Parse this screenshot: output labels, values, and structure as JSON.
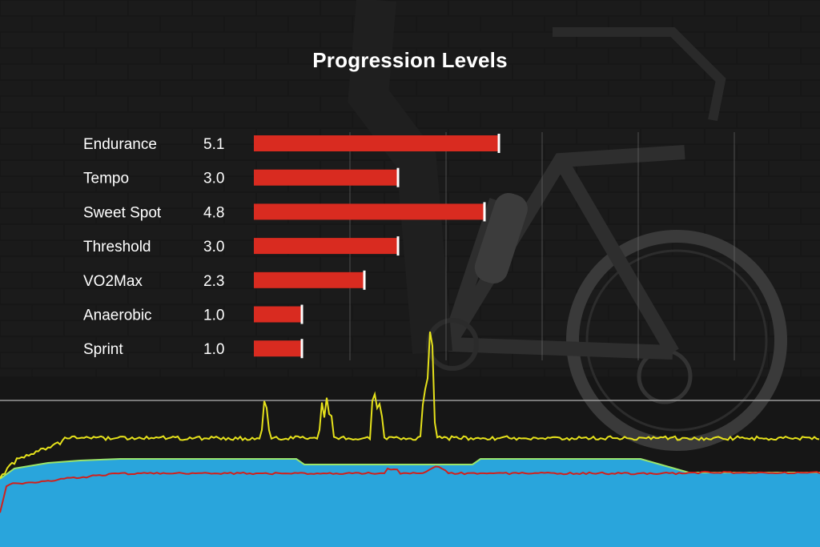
{
  "chart_data": {
    "type": "bar",
    "orientation": "horizontal",
    "title": "Progression Levels",
    "categories": [
      "Endurance",
      "Tempo",
      "Sweet Spot",
      "Threshold",
      "VO2Max",
      "Anaerobic",
      "Sprint"
    ],
    "values": [
      5.1,
      3.0,
      4.8,
      3.0,
      2.3,
      1.0,
      1.0
    ],
    "value_labels": [
      "5.1",
      "3.0",
      "4.8",
      "3.0",
      "2.3",
      "1.0",
      "1.0"
    ],
    "xlim": [
      0,
      10
    ],
    "grid": true,
    "legend": "none",
    "colors": {
      "bar": "#d92b20",
      "bar_cap": "#ffffff",
      "power": "#e6e21b",
      "target_fill": "#29a5dc",
      "target_edge": "#9ae36a",
      "heart_rate": "#d0201c"
    }
  }
}
